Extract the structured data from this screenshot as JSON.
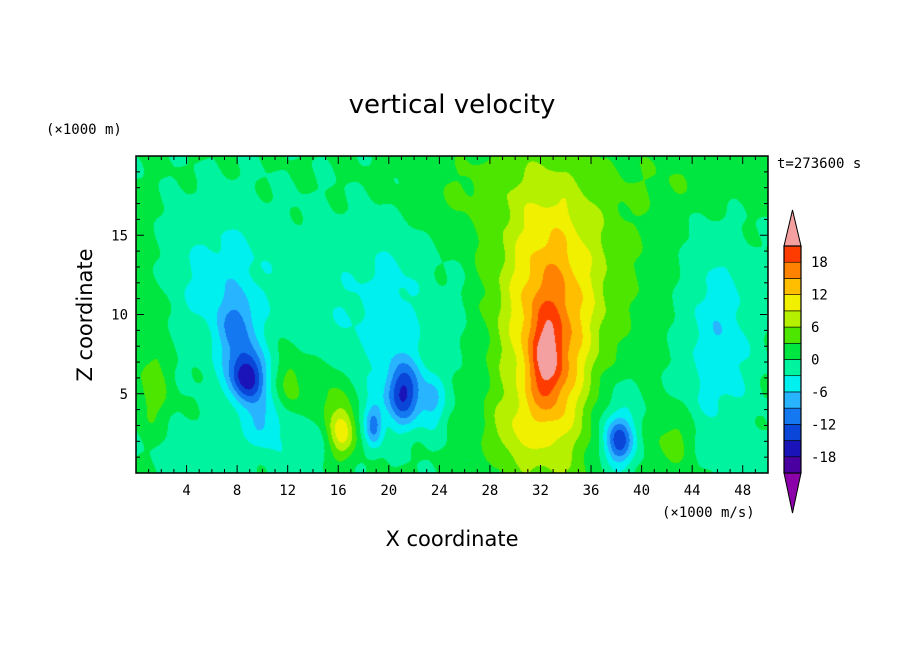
{
  "chart_data": {
    "type": "heatmap",
    "title": "vertical velocity",
    "xlabel": "X coordinate",
    "ylabel": "Z coordinate",
    "x_unit": "(×1000 m/s)",
    "y_unit": "(×1000 m)",
    "time_label": "t=273600 s",
    "xlim": [
      0,
      50
    ],
    "ylim": [
      0,
      20
    ],
    "x_ticks": [
      4,
      8,
      12,
      16,
      20,
      24,
      28,
      32,
      36,
      40,
      44,
      48
    ],
    "y_ticks": [
      5,
      10,
      15
    ],
    "colorbar": {
      "ticks": [
        18,
        12,
        6,
        0,
        -6,
        -12,
        -18
      ],
      "levels": [
        -21,
        -18,
        -15,
        -12,
        -9,
        -6,
        -3,
        0,
        3,
        6,
        9,
        12,
        15,
        18,
        21
      ],
      "colors": [
        "#8b00a8",
        "#4a00a0",
        "#1a14b8",
        "#0a46d8",
        "#1478f0",
        "#28b4ff",
        "#00f0f0",
        "#00f4a0",
        "#00e640",
        "#4ce600",
        "#b4f000",
        "#f0f000",
        "#ffbe00",
        "#ff8200",
        "#ff3c00",
        "#e00000",
        "#f5a0a0"
      ]
    },
    "features": [
      {
        "x": 8.8,
        "z": 6.0,
        "sx": 1.1,
        "sz": 1.2,
        "w": -16
      },
      {
        "x": 8.0,
        "z": 9.0,
        "sx": 1.0,
        "sz": 1.5,
        "w": -8
      },
      {
        "x": 7.0,
        "z": 12.0,
        "sx": 3.0,
        "sz": 3.5,
        "w": -5
      },
      {
        "x": 10.0,
        "z": 3.2,
        "sx": 0.9,
        "sz": 1.1,
        "w": -6
      },
      {
        "x": 12.2,
        "z": 5.8,
        "sx": 0.7,
        "sz": 1.4,
        "w": 5
      },
      {
        "x": 13.0,
        "z": 2.0,
        "sx": 1.5,
        "sz": 1.5,
        "w": -3
      },
      {
        "x": 16.3,
        "z": 2.6,
        "sx": 0.8,
        "sz": 1.2,
        "w": 10
      },
      {
        "x": 15.0,
        "z": 5.0,
        "sx": 1.2,
        "sz": 1.5,
        "w": 4
      },
      {
        "x": 18.8,
        "z": 3.0,
        "sx": 0.5,
        "sz": 1.0,
        "w": -10
      },
      {
        "x": 21.2,
        "z": 5.0,
        "sx": 1.0,
        "sz": 1.4,
        "w": -14
      },
      {
        "x": 23.5,
        "z": 4.5,
        "sx": 0.7,
        "sz": 1.2,
        "w": -6
      },
      {
        "x": 20.0,
        "z": 10.0,
        "sx": 2.5,
        "sz": 4.0,
        "w": -5
      },
      {
        "x": 14.5,
        "z": 11.0,
        "sx": 2.0,
        "sz": 4.0,
        "w": -2
      },
      {
        "x": 25.5,
        "z": 10.0,
        "sx": 1.2,
        "sz": 3.0,
        "w": -2
      },
      {
        "x": 32.8,
        "z": 8.0,
        "sx": 2.4,
        "sz": 6.0,
        "w": 13
      },
      {
        "x": 32.5,
        "z": 7.0,
        "sx": 0.9,
        "sz": 2.0,
        "w": 8
      },
      {
        "x": 33.5,
        "z": 13.0,
        "sx": 5.0,
        "sz": 5.5,
        "w": 5
      },
      {
        "x": 29.5,
        "z": 2.5,
        "sx": 1.5,
        "sz": 1.6,
        "w": 4
      },
      {
        "x": 38.2,
        "z": 2.0,
        "sx": 0.8,
        "sz": 1.0,
        "w": -12
      },
      {
        "x": 38.0,
        "z": 3.5,
        "sx": 1.5,
        "sz": 2.5,
        "w": -4
      },
      {
        "x": 42.5,
        "z": 2.0,
        "sx": 1.3,
        "sz": 1.3,
        "w": 4
      },
      {
        "x": 46.0,
        "z": 8.5,
        "sx": 2.0,
        "sz": 4.5,
        "w": -6
      },
      {
        "x": 49.0,
        "z": 1.0,
        "sx": 1.0,
        "sz": 1.0,
        "w": -3
      },
      {
        "x": 5.0,
        "z": 1.5,
        "sx": 4.0,
        "sz": 1.5,
        "w": -2
      },
      {
        "x": 1.5,
        "z": 5.0,
        "sx": 1.0,
        "sz": 2.0,
        "w": 3
      },
      {
        "x": 1.0,
        "z": 9.0,
        "sx": 1.0,
        "sz": 4.0,
        "w": 2
      },
      {
        "x": 27.0,
        "z": 18.0,
        "sx": 5.0,
        "sz": 2.0,
        "w": 2
      },
      {
        "x": 44.0,
        "z": 18.5,
        "sx": 4.0,
        "sz": 1.5,
        "w": 2
      }
    ]
  }
}
